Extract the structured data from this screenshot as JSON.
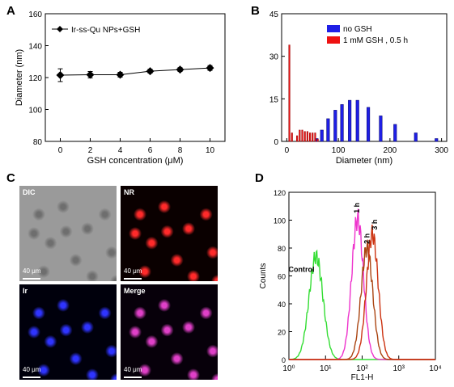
{
  "panels": {
    "a": "A",
    "b": "B",
    "c": "C",
    "d": "D"
  },
  "chart_data": [
    {
      "id": "A",
      "type": "line",
      "legend": "Ir-ss-Qu NPs+GSH",
      "legend_position": "top-left",
      "xlabel": "GSH concentration (μM)",
      "ylabel": "Diameter (nm)",
      "xlim": [
        -1,
        11
      ],
      "ylim": [
        80,
        160
      ],
      "xticks": [
        0,
        2,
        4,
        6,
        8,
        10
      ],
      "yticks": [
        80,
        100,
        120,
        140,
        160
      ],
      "x": [
        0,
        2,
        4,
        6,
        8,
        10
      ],
      "y": [
        121.5,
        121.8,
        121.8,
        124,
        125,
        126
      ],
      "err": [
        4,
        2,
        1.5,
        1.2,
        1.2,
        1.5
      ],
      "color": "#000000"
    },
    {
      "id": "B",
      "type": "bar",
      "xlabel": "Diameter (nm)",
      "ylabel": "",
      "xlim": [
        -10,
        310
      ],
      "ylim": [
        0,
        45
      ],
      "xticks": [
        0,
        100,
        200,
        300
      ],
      "yticks": [
        0,
        15,
        30,
        45
      ],
      "legend_position": "top-right",
      "series": [
        {
          "name": "no GSH",
          "color": "#1f1fe6",
          "width": 9,
          "x": [
            58,
            68,
            80,
            94,
            107,
            122,
            137,
            158,
            182,
            210,
            250,
            290
          ],
          "values": [
            1,
            4,
            8,
            11,
            13,
            14.5,
            14.5,
            12,
            9,
            6,
            3,
            1
          ]
        },
        {
          "name": "1 mM GSH , 0.5 h",
          "color": "#ee1111",
          "width": 4,
          "x": [
            5,
            10,
            20,
            25,
            30,
            35,
            40,
            45,
            50,
            55,
            60
          ],
          "values": [
            34,
            3,
            2,
            4,
            4,
            3.5,
            3.5,
            3,
            3,
            3,
            0.8
          ]
        }
      ]
    },
    {
      "id": "D",
      "type": "line",
      "xlabel": "FL1-H",
      "ylabel": "Counts",
      "xscale": "log",
      "xlim": [
        1,
        10000
      ],
      "ylim": [
        0,
        120
      ],
      "xticks": [
        1,
        10,
        100,
        1000,
        10000
      ],
      "yticks": [
        0,
        20,
        40,
        60,
        80,
        100,
        120
      ],
      "annotations": [
        "Control",
        "1 h",
        "2 h",
        "3 h"
      ],
      "series": [
        {
          "name": "Control",
          "color": "#33dd33",
          "center": 5.5,
          "width": 0.19,
          "peak": 74
        },
        {
          "name": "1 h",
          "color": "#ee33cc",
          "center": 75,
          "width": 0.16,
          "peak": 101
        },
        {
          "name": "2 h",
          "color": "#aa4411",
          "center": 135,
          "width": 0.16,
          "peak": 80
        },
        {
          "name": "3 h",
          "color": "#cc3311",
          "center": 190,
          "width": 0.16,
          "peak": 90
        }
      ]
    }
  ],
  "micrographs": [
    {
      "label": "DIC",
      "scale": "40 μm",
      "color": "#9a9a9a"
    },
    {
      "label": "NR",
      "scale": "40 μm",
      "color": "#0a0000"
    },
    {
      "label": "Ir",
      "scale": "40 μm",
      "color": "#00000c"
    },
    {
      "label": "Merge",
      "scale": "40 μm",
      "color": "#07000a"
    }
  ]
}
